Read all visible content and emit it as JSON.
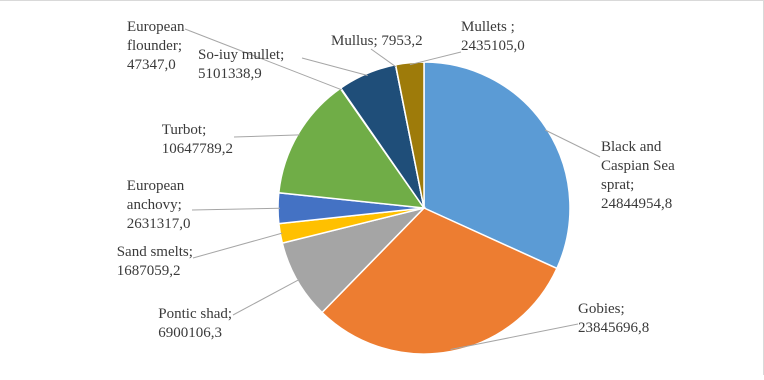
{
  "chart_data": {
    "type": "pie",
    "title": "",
    "legend": "none",
    "slices": [
      {
        "label": [
          "Black and",
          "Caspian Sea",
          "sprat;"
        ],
        "value_text": "24844954,8",
        "value": 24844954.8,
        "color": "#5b9bd5"
      },
      {
        "label": [
          "Gobies;"
        ],
        "value_text": "23845696,8",
        "value": 23845696.8,
        "color": "#ed7d31"
      },
      {
        "label": [
          "Pontic shad;"
        ],
        "value_text": "6900106,3",
        "value": 6900106.3,
        "color": "#a5a5a5"
      },
      {
        "label": [
          "Sand smelts;"
        ],
        "value_text": "1687059,2",
        "value": 1687059.2,
        "color": "#ffc000"
      },
      {
        "label": [
          "European",
          "anchovy;"
        ],
        "value_text": "2631317,0",
        "value": 2631317.0,
        "color": "#4472c4"
      },
      {
        "label": [
          "Turbot;"
        ],
        "value_text": "10647789,2",
        "value": 10647789.2,
        "color": "#70ad47"
      },
      {
        "label": [
          "European",
          "flounder;"
        ],
        "value_text": "47347,0",
        "value": 47347.0,
        "color": "#255e91"
      },
      {
        "label": [
          "So-iuy mullet;"
        ],
        "value_text": "5101338,9",
        "value": 5101338.9,
        "color": "#1f4e79"
      },
      {
        "label": [
          "Mullus;"
        ],
        "value_text": "7953,2",
        "value": 7953.2,
        "color": "#7f6000"
      },
      {
        "label": [
          "Mullets ;"
        ],
        "value_text": "2435105,0",
        "value": 2435105.0,
        "color": "#9e7b0a"
      }
    ]
  }
}
